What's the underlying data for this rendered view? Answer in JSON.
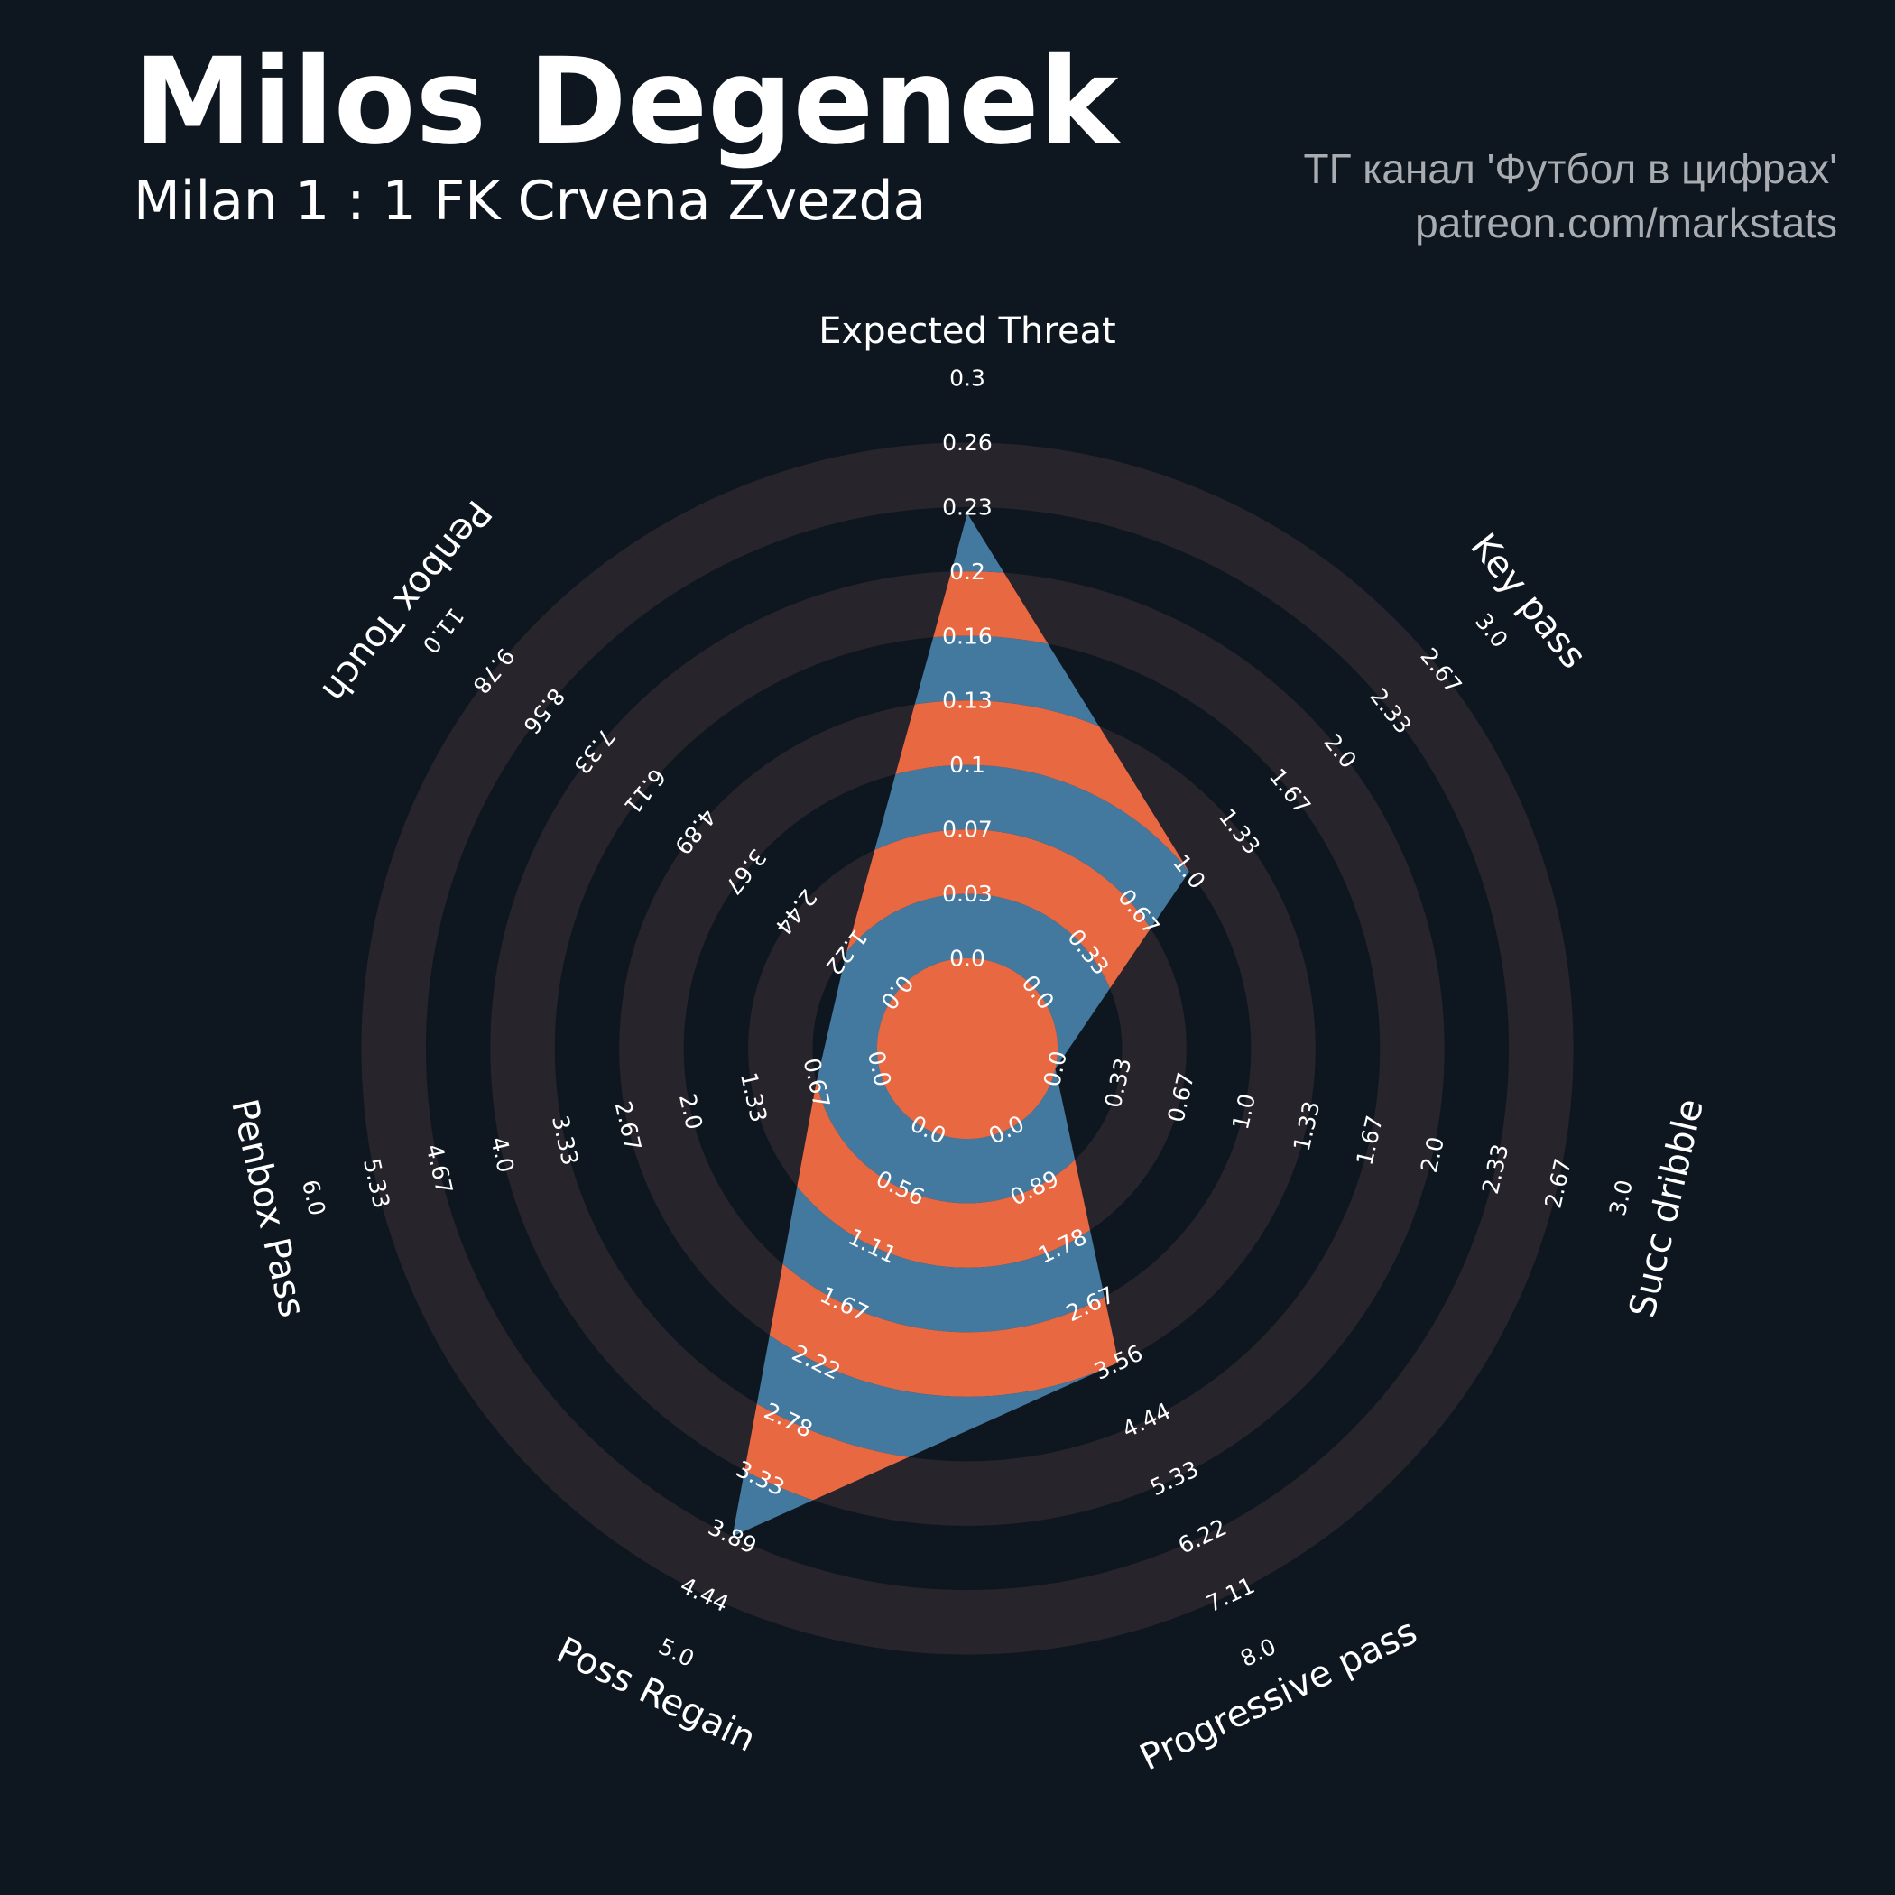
{
  "colors": {
    "background": "#0e1720",
    "ring": "#28242b",
    "blue": "#43789f",
    "orange": "#e86842",
    "title": "#ffffff",
    "watermark": "#a9adb1"
  },
  "header": {
    "title": "Milos Degenek",
    "subtitle": "Milan 1 : 1 FK Crvena Zvezda",
    "watermark_line1": "ТГ канал 'Футбол в цифрах'",
    "watermark_line2": "patreon.com/markstats"
  },
  "chart_data": {
    "type": "radar",
    "title": "Milos Degenek",
    "num_rings": 9,
    "axes": [
      {
        "name": "Expected Threat",
        "min": 0.0,
        "max": 0.3,
        "value": 0.23,
        "ticks": [
          "0.0",
          "0.03",
          "0.07",
          "0.1",
          "0.13",
          "0.16",
          "0.2",
          "0.23",
          "0.26",
          "0.3"
        ]
      },
      {
        "name": "Key pass",
        "min": 0.0,
        "max": 3.0,
        "value": 1.0,
        "ticks": [
          "0.0",
          "0.33",
          "0.67",
          "1.0",
          "1.33",
          "1.67",
          "2.0",
          "2.33",
          "2.67",
          "3.0"
        ]
      },
      {
        "name": "Succ dribble",
        "min": 0.0,
        "max": 3.0,
        "value": 0.0,
        "ticks": [
          "0.0",
          "0.33",
          "0.67",
          "1.0",
          "1.33",
          "1.67",
          "2.0",
          "2.33",
          "2.67",
          "3.0"
        ]
      },
      {
        "name": "Progressive pass",
        "min": 0.0,
        "max": 8.0,
        "value": 3.56,
        "ticks": [
          "0.0",
          "0.89",
          "1.78",
          "2.67",
          "3.56",
          "4.44",
          "5.33",
          "6.22",
          "7.11",
          "8.0"
        ]
      },
      {
        "name": "Poss Regain",
        "min": 0.0,
        "max": 5.0,
        "value": 3.89,
        "ticks": [
          "0.0",
          "0.56",
          "1.11",
          "1.67",
          "2.22",
          "2.78",
          "3.33",
          "3.89",
          "4.44",
          "5.0"
        ]
      },
      {
        "name": "Penbox Pass",
        "min": 0.0,
        "max": 6.0,
        "value": 0.67,
        "ticks": [
          "0.0",
          "0.67",
          "1.33",
          "2.0",
          "2.67",
          "3.33",
          "4.0",
          "4.67",
          "5.33",
          "6.0"
        ]
      },
      {
        "name": "Penbox Touch",
        "min": 0.0,
        "max": 11.0,
        "value": 1.22,
        "ticks": [
          "0.0",
          "1.22",
          "2.44",
          "3.67",
          "4.89",
          "6.11",
          "7.33",
          "8.56",
          "9.78",
          "11.0"
        ]
      }
    ]
  }
}
